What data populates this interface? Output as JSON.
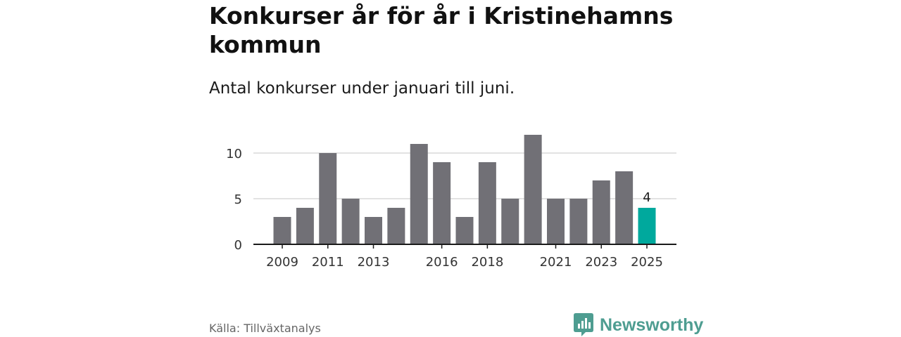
{
  "chart_data": {
    "type": "bar",
    "title": "Konkurser år för år i Kristinehamns kommun",
    "subtitle": "Antal konkurser under januari till juni.",
    "categories": [
      "2009",
      "2010",
      "2011",
      "2012",
      "2013",
      "2014",
      "2015",
      "2016",
      "2017",
      "2018",
      "2019",
      "2020",
      "2021",
      "2022",
      "2023",
      "2024",
      "2025"
    ],
    "values": [
      3,
      4,
      10,
      5,
      3,
      4,
      11,
      9,
      3,
      9,
      5,
      12,
      5,
      5,
      7,
      8,
      4
    ],
    "x_tick_labels": [
      "2009",
      "2011",
      "2013",
      "2016",
      "2018",
      "2021",
      "2023",
      "2025"
    ],
    "y_ticks": [
      0,
      5,
      10
    ],
    "ylim": [
      0,
      13
    ],
    "grid": true,
    "highlight": {
      "category": "2025",
      "label": "4"
    },
    "colors": {
      "bar": "#717076",
      "highlight": "#00a99d",
      "grid": "#d9d9d9",
      "axis": "#1a1a1a"
    }
  },
  "footer": {
    "source": "Källa: Tillväxtanalys",
    "brand": "Newsworthy",
    "brand_icon": "newsworthy-bar-chart-icon",
    "brand_color": "#4e9d91"
  }
}
